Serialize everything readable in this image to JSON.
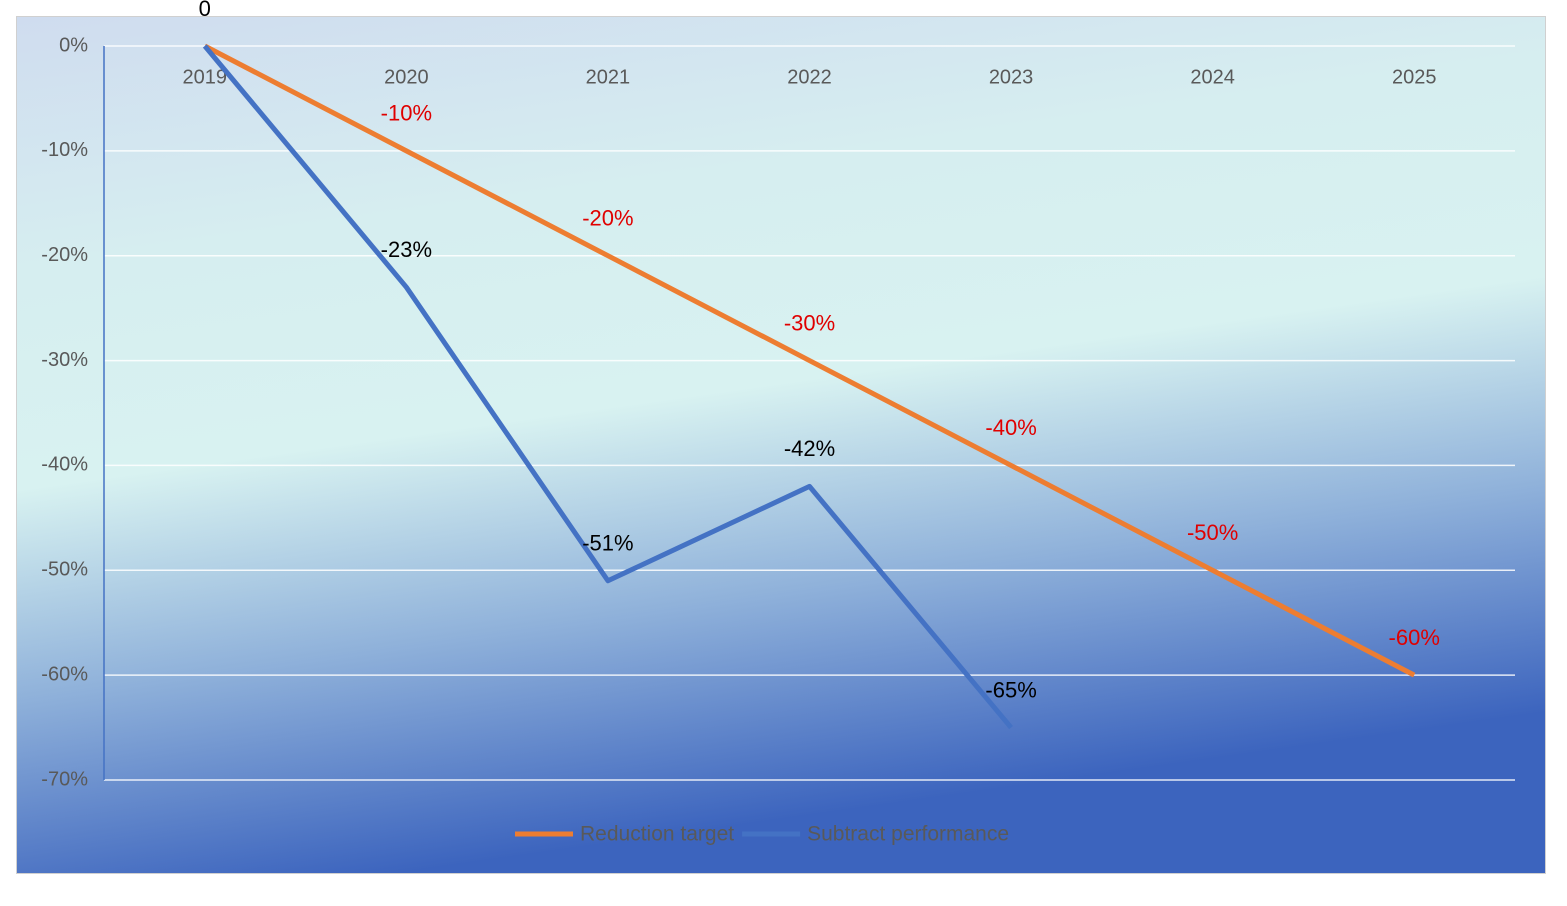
{
  "chart_data": {
    "type": "line",
    "categories": [
      "2019",
      "2020",
      "2021",
      "2022",
      "2023",
      "2024",
      "2025"
    ],
    "series": [
      {
        "name": "Reduction target",
        "color": "#ED7D31",
        "label_color": "#E00000",
        "values": [
          0,
          -10,
          -20,
          -30,
          -40,
          -50,
          -60
        ],
        "value_labels": [
          null,
          "-10%",
          "-20%",
          "-30%",
          "-40%",
          "-50%",
          "-60%"
        ]
      },
      {
        "name": "Subtract performance",
        "color": "#4472C4",
        "label_color": "#000000",
        "values": [
          0,
          -23,
          -51,
          -42,
          -65,
          null,
          null
        ],
        "value_labels": [
          "0",
          "-23%",
          "-51%",
          "-42%",
          "-65%",
          null,
          null
        ]
      }
    ],
    "ylim": [
      -70,
      0
    ],
    "yticks": [
      {
        "value": 0,
        "label": "0%"
      },
      {
        "value": -10,
        "label": "-10%"
      },
      {
        "value": -20,
        "label": "-20%"
      },
      {
        "value": -30,
        "label": "-30%"
      },
      {
        "value": -40,
        "label": "-40%"
      },
      {
        "value": -50,
        "label": "-50%"
      },
      {
        "value": -60,
        "label": "-60%"
      },
      {
        "value": -70,
        "label": "-70%"
      }
    ],
    "grid": true,
    "legend": "bottom"
  }
}
